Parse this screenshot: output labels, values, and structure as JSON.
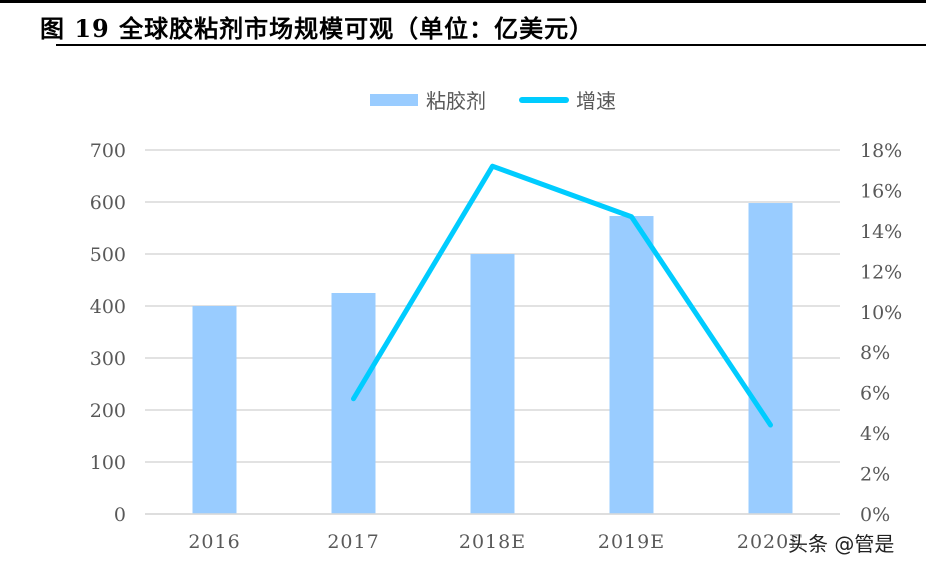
{
  "title": "图 19 全球胶粘剂市场规模可观（单位：亿美元）",
  "watermark": "头条 @管是",
  "chart_data": {
    "type": "bar+line",
    "title": "",
    "categories": [
      "2016",
      "2017",
      "2018E",
      "2019E",
      "2020E"
    ],
    "series": [
      {
        "name": "粘胶剂",
        "type": "bar",
        "axis": "left",
        "color": "#99CCFF",
        "values": [
          400,
          425,
          500,
          573,
          598
        ]
      },
      {
        "name": "增速",
        "type": "line",
        "axis": "right",
        "color": "#00CCFF",
        "values": [
          null,
          5.7,
          17.2,
          14.7,
          4.4
        ]
      }
    ],
    "y_left": {
      "range": [
        0,
        700
      ],
      "ticks": [
        "0",
        "100",
        "200",
        "300",
        "400",
        "500",
        "600",
        "700"
      ]
    },
    "y_right": {
      "range": [
        0,
        18
      ],
      "ticks": [
        "0%",
        "2%",
        "4%",
        "6%",
        "8%",
        "10%",
        "12%",
        "14%",
        "16%",
        "18%"
      ]
    },
    "grid": true,
    "legend_position": "top-center"
  }
}
